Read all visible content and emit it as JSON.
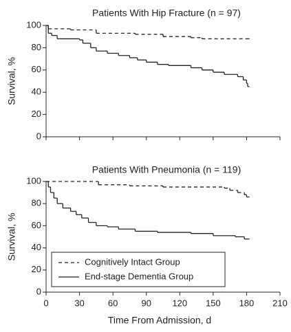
{
  "chart_data": [
    {
      "type": "line",
      "step": true,
      "title": "Patients With Hip Fracture (n = 97)",
      "ylabel": "Survival, %",
      "xlim": [
        0,
        210
      ],
      "xticks": [
        0,
        30,
        60,
        90,
        120,
        150,
        180,
        210
      ],
      "show_xtick_labels": false,
      "ylim": [
        0,
        100
      ],
      "yticks": [
        0,
        20,
        40,
        60,
        80,
        100
      ],
      "series": [
        {
          "color": "#222222",
          "linestyle": "dashed",
          "x": [
            0,
            2,
            22,
            45,
            80,
            105,
            130,
            140,
            182
          ],
          "values": [
            100,
            97,
            96,
            93,
            92,
            90,
            89,
            88,
            88
          ]
        },
        {
          "color": "#222222",
          "linestyle": "solid",
          "x": [
            0,
            2,
            5,
            10,
            30,
            33,
            40,
            45,
            55,
            65,
            75,
            82,
            90,
            100,
            110,
            130,
            140,
            150,
            160,
            172,
            177,
            180,
            181,
            182
          ],
          "values": [
            100,
            93,
            91,
            88,
            87,
            84,
            80,
            77,
            75,
            73,
            71,
            69,
            67,
            65,
            64,
            62,
            60,
            58,
            56,
            54,
            51,
            48,
            45,
            45
          ]
        }
      ]
    },
    {
      "type": "line",
      "step": true,
      "title": "Patients With Pneumonia (n = 119)",
      "ylabel": "Survival, %",
      "xlabel": "Time From Admission, d",
      "xlim": [
        0,
        210
      ],
      "xticks": [
        0,
        30,
        60,
        90,
        120,
        150,
        180,
        210
      ],
      "show_xtick_labels": true,
      "ylim": [
        0,
        100
      ],
      "yticks": [
        0,
        20,
        40,
        60,
        80,
        100
      ],
      "legend": "lower left",
      "series": [
        {
          "name": "Cognitively Intact Group",
          "color": "#222222",
          "linestyle": "dashed",
          "x": [
            0,
            47,
            75,
            105,
            160,
            165,
            172,
            178,
            180,
            182
          ],
          "values": [
            100,
            97,
            96,
            95,
            94,
            92,
            90,
            88,
            86,
            86
          ]
        },
        {
          "name": "End-stage Dementia Group",
          "color": "#222222",
          "linestyle": "solid",
          "x": [
            0,
            2,
            4,
            7,
            10,
            15,
            22,
            27,
            32,
            38,
            45,
            55,
            65,
            80,
            100,
            130,
            150,
            170,
            178,
            182
          ],
          "values": [
            100,
            95,
            90,
            85,
            80,
            76,
            73,
            70,
            67,
            63,
            60,
            59,
            57,
            55,
            54,
            53,
            51,
            50,
            48,
            48
          ]
        }
      ]
    }
  ]
}
